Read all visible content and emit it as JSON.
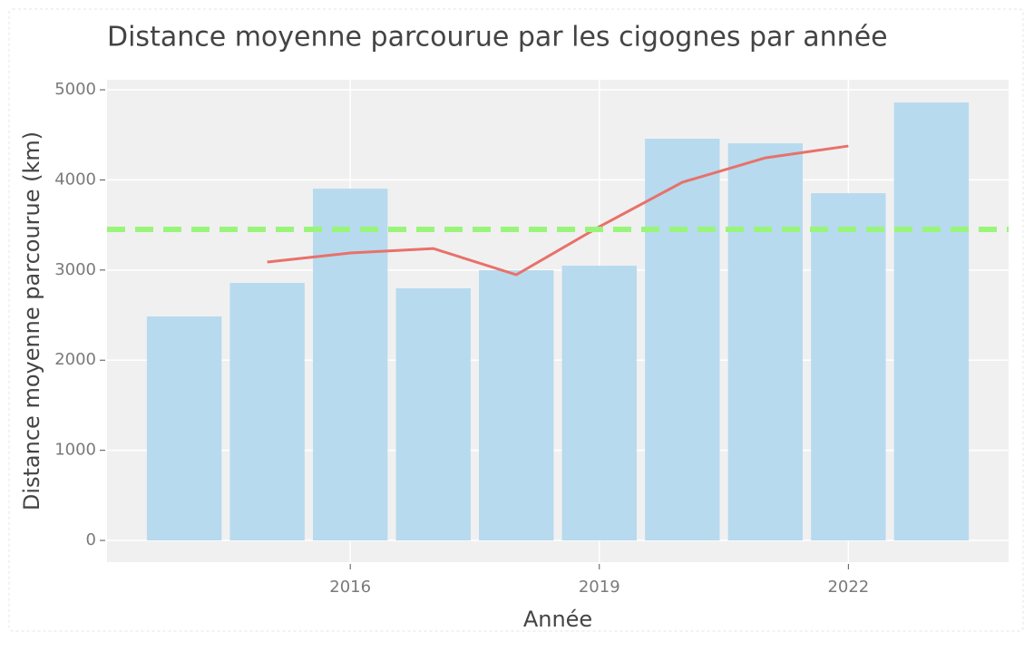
{
  "chart_data": {
    "type": "bar",
    "title": "Distance moyenne parcourue par les cigognes par année",
    "x_label": "Année",
    "y_label": "Distance moyenne parcourue (km)",
    "x": [
      2014,
      2015,
      2016,
      2017,
      2018,
      2019,
      2020,
      2021,
      2022,
      2023
    ],
    "series": [
      {
        "type": "bar",
        "color": "#b7daee",
        "values": [
          2485,
          2857,
          3903,
          2797,
          2998,
          3048,
          4457,
          4406,
          3853,
          4859
        ]
      },
      {
        "type": "line",
        "color": "#e8716a",
        "values": [
          null,
          3089,
          3189,
          3239,
          2948,
          3481,
          3974,
          4245,
          4376,
          null
        ]
      }
    ],
    "reference_line": {
      "value": 3451,
      "color": "#99f57a",
      "dashed": true
    },
    "xlim": [
      2013.07,
      2023.93
    ],
    "xticks": [
      2016,
      2019,
      2022
    ],
    "ylim": [
      -241,
      5111
    ],
    "yticks": [
      0,
      1000,
      2000,
      3000,
      4000,
      5000
    ],
    "grid": true
  }
}
